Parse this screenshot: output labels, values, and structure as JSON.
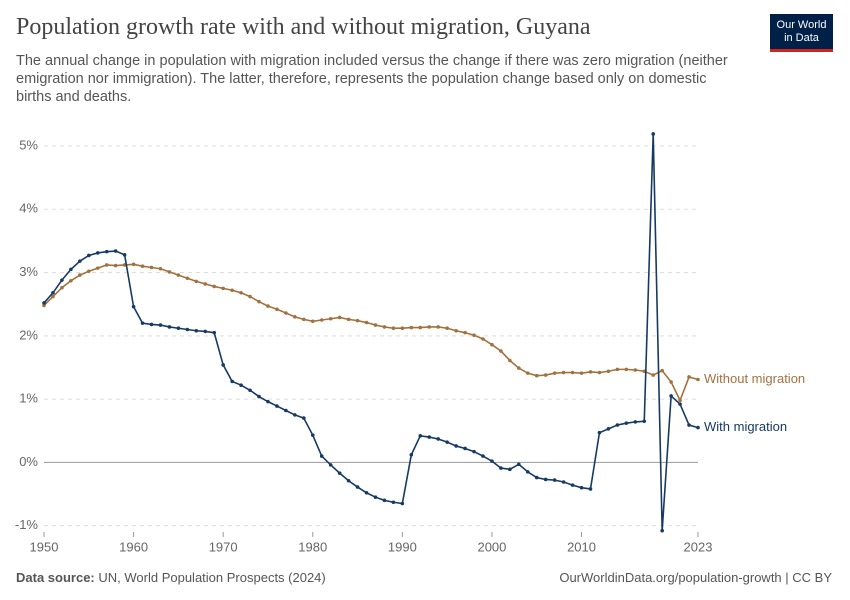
{
  "header": {
    "title": "Population growth rate with and without migration, Guyana",
    "subtitle": "The annual change in population with migration included versus the change if there was zero migration (neither emigration nor immigration). The latter, therefore, represents the population change based only on domestic births and deaths.",
    "logo": [
      "Our World",
      "in Data"
    ]
  },
  "footer": {
    "source_label": "Data source:",
    "source": "UN, World Population Prospects (2024)",
    "url": "OurWorldinData.org/population-growth | CC BY"
  },
  "chart_data": {
    "type": "line",
    "x": [
      1950,
      1951,
      1952,
      1953,
      1954,
      1955,
      1956,
      1957,
      1958,
      1959,
      1960,
      1961,
      1962,
      1963,
      1964,
      1965,
      1966,
      1967,
      1968,
      1969,
      1970,
      1971,
      1972,
      1973,
      1974,
      1975,
      1976,
      1977,
      1978,
      1979,
      1980,
      1981,
      1982,
      1983,
      1984,
      1985,
      1986,
      1987,
      1988,
      1989,
      1990,
      1991,
      1992,
      1993,
      1994,
      1995,
      1996,
      1997,
      1998,
      1999,
      2000,
      2001,
      2002,
      2003,
      2004,
      2005,
      2006,
      2007,
      2008,
      2009,
      2010,
      2011,
      2012,
      2013,
      2014,
      2015,
      2016,
      2017,
      2018,
      2019,
      2020,
      2021,
      2022,
      2023
    ],
    "series": [
      {
        "name": "Without migration",
        "color": "#a2723e",
        "values": [
          2.48,
          2.62,
          2.76,
          2.87,
          2.96,
          3.02,
          3.07,
          3.12,
          3.11,
          3.12,
          3.13,
          3.1,
          3.08,
          3.06,
          3.01,
          2.96,
          2.91,
          2.86,
          2.82,
          2.78,
          2.75,
          2.72,
          2.68,
          2.62,
          2.54,
          2.47,
          2.42,
          2.36,
          2.3,
          2.26,
          2.23,
          2.25,
          2.27,
          2.29,
          2.26,
          2.24,
          2.21,
          2.17,
          2.14,
          2.12,
          2.12,
          2.13,
          2.13,
          2.14,
          2.14,
          2.12,
          2.08,
          2.05,
          2.01,
          1.95,
          1.86,
          1.76,
          1.61,
          1.49,
          1.41,
          1.37,
          1.38,
          1.41,
          1.42,
          1.42,
          1.41,
          1.43,
          1.42,
          1.44,
          1.47,
          1.47,
          1.46,
          1.44,
          1.38,
          1.45,
          1.27,
          0.98,
          1.35,
          1.31
        ]
      },
      {
        "name": "With migration",
        "color": "#163a64",
        "values": [
          2.52,
          2.68,
          2.88,
          3.05,
          3.18,
          3.27,
          3.31,
          3.33,
          3.34,
          3.28,
          2.46,
          2.2,
          2.18,
          2.17,
          2.14,
          2.12,
          2.1,
          2.08,
          2.07,
          2.05,
          1.54,
          1.28,
          1.22,
          1.14,
          1.04,
          0.96,
          0.89,
          0.82,
          0.75,
          0.7,
          0.43,
          0.1,
          -0.04,
          -0.17,
          -0.29,
          -0.39,
          -0.48,
          -0.55,
          -0.6,
          -0.63,
          -0.65,
          0.12,
          0.42,
          0.4,
          0.37,
          0.32,
          0.26,
          0.22,
          0.17,
          0.1,
          0.02,
          -0.09,
          -0.11,
          -0.03,
          -0.15,
          -0.24,
          -0.27,
          -0.28,
          -0.31,
          -0.36,
          -0.4,
          -0.42,
          0.47,
          0.53,
          0.59,
          0.62,
          0.64,
          0.65,
          5.19,
          -1.08,
          1.05,
          0.92,
          0.59,
          0.55
        ]
      }
    ],
    "xlim": [
      1950,
      2023
    ],
    "xticks": [
      1950,
      1960,
      1970,
      1980,
      1990,
      2000,
      2010,
      2023
    ],
    "ylim": [
      -1.1,
      5.3
    ],
    "yticks": [
      {
        "value": -1,
        "label": "-1%"
      },
      {
        "value": 0,
        "label": "0%"
      },
      {
        "value": 1,
        "label": "1%"
      },
      {
        "value": 2,
        "label": "2%"
      },
      {
        "value": 3,
        "label": "3%"
      },
      {
        "value": 4,
        "label": "4%"
      },
      {
        "value": 5,
        "label": "5%"
      }
    ],
    "grid": true
  }
}
